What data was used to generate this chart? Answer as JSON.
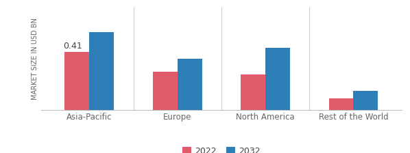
{
  "categories": [
    "Asia-Pacific",
    "Europe",
    "North America",
    "Rest of the World"
  ],
  "values_2022": [
    0.41,
    0.27,
    0.25,
    0.085
  ],
  "values_2032": [
    0.55,
    0.36,
    0.44,
    0.135
  ],
  "color_2022": "#e05a6a",
  "color_2032": "#2e7eb8",
  "ylabel": "MARKET SIZE IN USD BN",
  "legend_2022": "2022",
  "legend_2032": "2032",
  "annotation_value": "0.41",
  "annotation_bar": 0,
  "bar_width": 0.28,
  "ylim": [
    0,
    0.72
  ],
  "background_color": "#ffffff",
  "separator_color": "#cccccc",
  "ylabel_fontsize": 7.0,
  "tick_fontsize": 8.5,
  "legend_fontsize": 9,
  "annotation_fontsize": 9,
  "legend_marker_size": 10
}
